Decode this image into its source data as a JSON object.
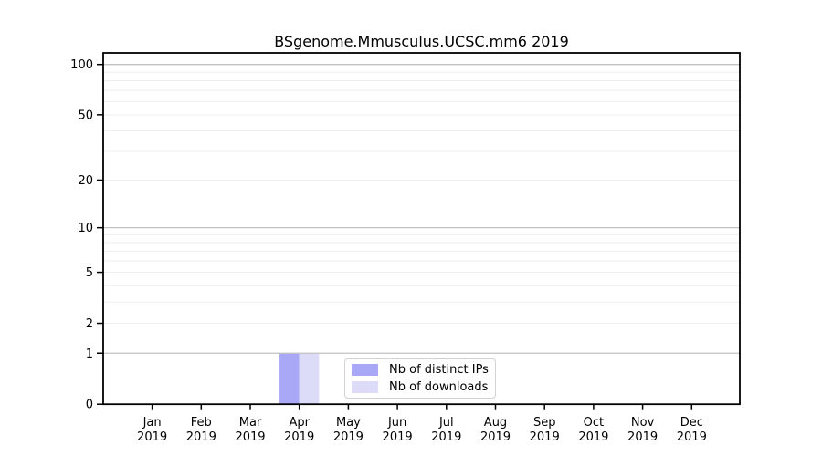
{
  "title": "BSgenome.Mmusculus.UCSC.mm6 2019",
  "chart_data": {
    "type": "bar",
    "title": "BSgenome.Mmusculus.UCSC.mm6 2019",
    "categories": [
      "Jan",
      "Feb",
      "Mar",
      "Apr",
      "May",
      "Jun",
      "Jul",
      "Aug",
      "Sep",
      "Oct",
      "Nov",
      "Dec"
    ],
    "x_year": "2019",
    "series": [
      {
        "name": "Nb of distinct IPs",
        "color": "#a8a8f6",
        "values": [
          0,
          0,
          0,
          1,
          0,
          0,
          0,
          0,
          0,
          0,
          0,
          0
        ]
      },
      {
        "name": "Nb of downloads",
        "color": "#dcdcf8",
        "values": [
          0,
          0,
          0,
          1,
          0,
          0,
          0,
          0,
          0,
          0,
          0,
          0
        ]
      }
    ],
    "yscale": "log1p",
    "ylim": [
      0,
      117
    ],
    "yticks": [
      0,
      1,
      2,
      5,
      10,
      20,
      50,
      100
    ],
    "grid": {
      "on": true,
      "major_gridlines": [
        1,
        10,
        100
      ],
      "minor_gridlines": [
        2,
        3,
        4,
        5,
        6,
        7,
        8,
        9,
        20,
        30,
        40,
        50,
        60,
        70,
        80,
        90
      ],
      "major_color": "#c2c2c2",
      "minor_color": "#ededed"
    },
    "legend": {
      "position": "lower center",
      "entries": [
        "Nb of distinct IPs",
        "Nb of downloads"
      ]
    },
    "axis_color": "#000000",
    "background": "#ffffff"
  }
}
